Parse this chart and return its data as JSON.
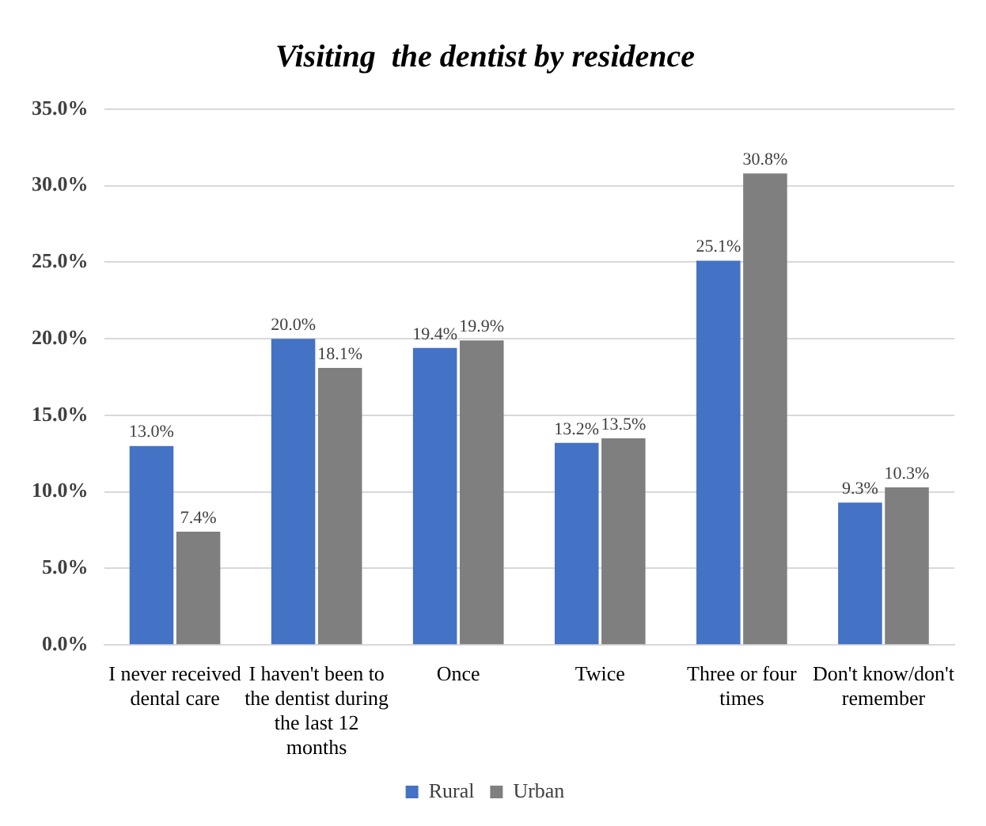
{
  "chart_data": {
    "type": "bar",
    "title": "Visiting  the dentist by residence",
    "categories": [
      "I never received dental care",
      "I haven't been to the dentist during the last 12 months",
      "Once",
      "Twice",
      "Three or four times",
      "Don't know/don't remember"
    ],
    "series": [
      {
        "name": "Rural",
        "color": "#4472c4",
        "values": [
          13.0,
          20.0,
          19.4,
          13.2,
          25.1,
          9.3
        ],
        "value_labels": [
          "13.0%",
          "20.0%",
          "19.4%",
          "13.2%",
          "25.1%",
          "9.3%"
        ]
      },
      {
        "name": "Urban",
        "color": "#7f7f7f",
        "values": [
          7.4,
          18.1,
          19.9,
          13.5,
          30.8,
          10.3
        ],
        "value_labels": [
          "7.4%",
          "18.1%",
          "19.9%",
          "13.5%",
          "30.8%",
          "10.3%"
        ]
      }
    ],
    "ylim": [
      0,
      35
    ],
    "yticks": [
      {
        "value": 0,
        "label": "0.0%"
      },
      {
        "value": 5,
        "label": "5.0%"
      },
      {
        "value": 10,
        "label": "10.0%"
      },
      {
        "value": 15,
        "label": "15.0%"
      },
      {
        "value": 20,
        "label": "20.0%"
      },
      {
        "value": 25,
        "label": "25.0%"
      },
      {
        "value": 30,
        "label": "30.0%"
      },
      {
        "value": 35,
        "label": "35.0%"
      }
    ],
    "grid": "y",
    "legend": "bottom"
  }
}
